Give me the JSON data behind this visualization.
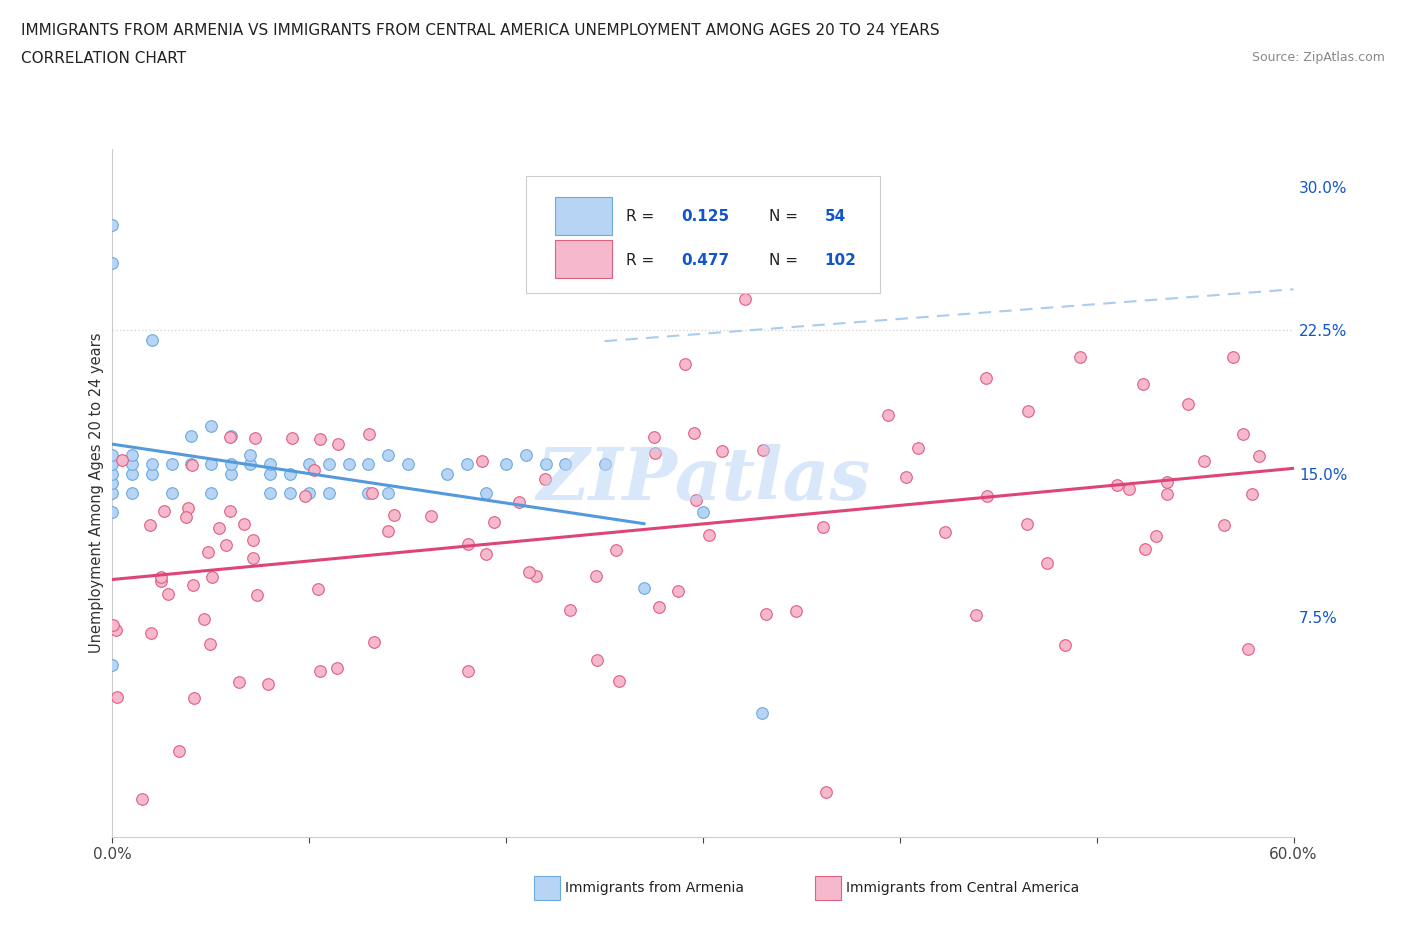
{
  "title_line1": "IMMIGRANTS FROM ARMENIA VS IMMIGRANTS FROM CENTRAL AMERICA UNEMPLOYMENT AMONG AGES 20 TO 24 YEARS",
  "title_line2": "CORRELATION CHART",
  "source": "Source: ZipAtlas.com",
  "ylabel_label": "Unemployment Among Ages 20 to 24 years",
  "watermark_text": "ZIPatlas",
  "armenia_R": 0.125,
  "armenia_N": 54,
  "central_america_R": 0.477,
  "central_america_N": 102,
  "armenia_fill_color": "#b8d4f5",
  "armenia_edge_color": "#6aaae0",
  "central_fill_color": "#f5b8cc",
  "central_edge_color": "#e06080",
  "armenia_trend_color": "#5599dd",
  "central_trend_color": "#dd4477",
  "dashed_line_color": "#aaccee",
  "background_color": "#ffffff",
  "xmin": 0.0,
  "xmax": 0.6,
  "ymin": -0.04,
  "ymax": 0.32,
  "y_ticks_right": [
    0.075,
    0.15,
    0.225,
    0.3
  ],
  "y_tick_labels_right": [
    "7.5%",
    "15.0%",
    "22.5%",
    "30.0%"
  ],
  "x_tick_positions": [
    0.0,
    0.1,
    0.2,
    0.3,
    0.4,
    0.5,
    0.6
  ],
  "legend_R_N_color": "#1155cc",
  "legend_border_color": "#cccccc"
}
